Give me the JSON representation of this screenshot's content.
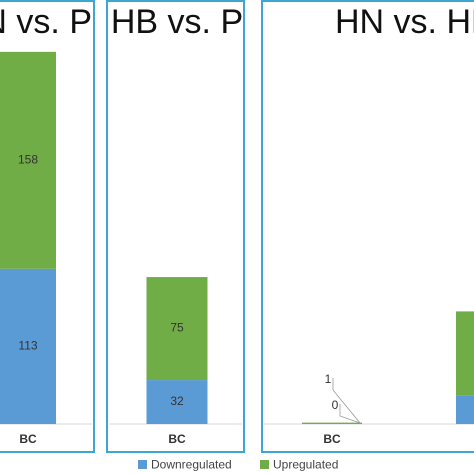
{
  "chart_data": [
    {
      "type": "bar",
      "stacked": true,
      "title": "HN vs. P",
      "categories": [
        "BC"
      ],
      "ylim": [
        0,
        280
      ],
      "series": [
        {
          "name": "Downregulated",
          "color": "#5b9bd5",
          "values": [
            113
          ]
        },
        {
          "name": "Upregulated",
          "color": "#70ad47",
          "values": [
            158
          ]
        }
      ]
    },
    {
      "type": "bar",
      "stacked": true,
      "title": "HB vs. P",
      "categories": [
        "BC"
      ],
      "ylim": [
        0,
        280
      ],
      "series": [
        {
          "name": "Downregulated",
          "color": "#5b9bd5",
          "values": [
            32
          ]
        },
        {
          "name": "Upregulated",
          "color": "#70ad47",
          "values": [
            75
          ]
        }
      ]
    },
    {
      "type": "bar",
      "stacked": true,
      "title": "HN vs. HB",
      "categories": [
        "BC",
        null
      ],
      "ylim": [
        0,
        280
      ],
      "series": [
        {
          "name": "Downregulated",
          "color": "#5b9bd5",
          "values": [
            0,
            21
          ]
        },
        {
          "name": "Upregulated",
          "color": "#70ad47",
          "values": [
            1,
            61
          ]
        }
      ]
    }
  ]
}
